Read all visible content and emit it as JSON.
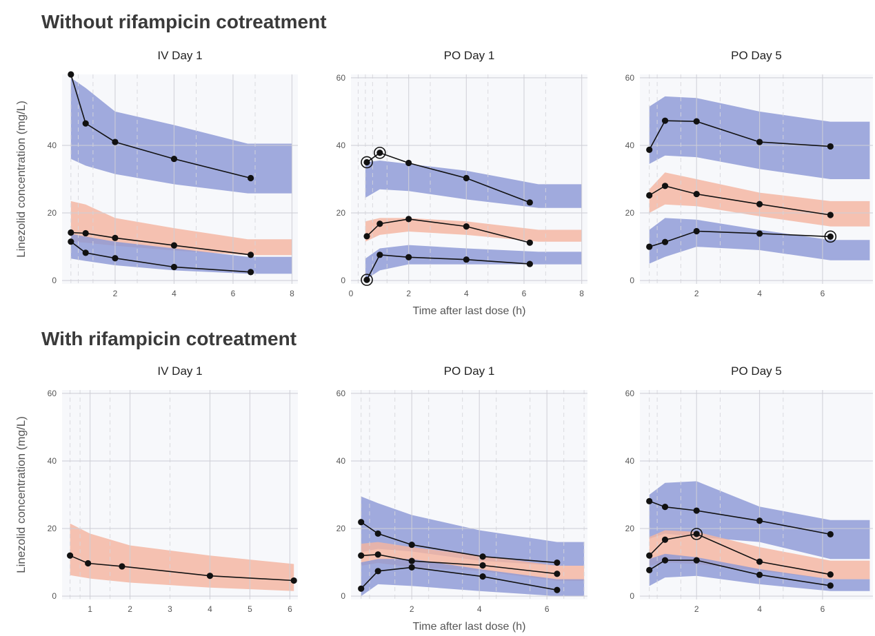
{
  "sections": [
    {
      "title": "Without rifampicin cotreatment"
    },
    {
      "title": "With rifampicin cotreatment"
    }
  ],
  "colors": {
    "blue_band": "#8c99d6",
    "orange_band": "#f4b4a0",
    "panel_bg": "#f7f8fb",
    "grid": "#cfcfd6",
    "dash": "#d6d6dc",
    "line": "#111111"
  },
  "chart_data": [
    {
      "type": "line",
      "section": "Without rifampicin cotreatment",
      "title": "IV Day 1",
      "xlabel": "",
      "ylabel": "Linezolid concentration (mg/L)",
      "xlim": [
        0.2,
        8.2
      ],
      "ylim": [
        -1,
        61
      ],
      "xticks": [
        2,
        4,
        6,
        8
      ],
      "yticks": [
        0,
        20,
        40
      ],
      "major_x": [
        2,
        4,
        6,
        8
      ],
      "dashed_x": [
        0.5,
        0.75,
        1.25,
        2.75,
        4.75,
        6.75
      ],
      "bands": [
        {
          "color": "blue",
          "x": [
            0.5,
            1,
            2,
            4,
            6.5,
            8.0
          ],
          "lo": [
            36,
            34,
            31.5,
            28.5,
            25.8,
            25.8
          ],
          "hi": [
            60,
            57,
            50,
            46,
            40.5,
            40.5
          ]
        },
        {
          "color": "orange",
          "x": [
            0.5,
            1,
            2,
            4,
            6.5,
            8.0
          ],
          "lo": [
            11.5,
            11.2,
            10.3,
            8.9,
            7.5,
            7.5
          ],
          "hi": [
            23.5,
            22.5,
            18.5,
            15.5,
            12.2,
            12.2
          ]
        },
        {
          "color": "blue",
          "x": [
            0.5,
            1,
            2,
            4,
            6.5,
            8.0
          ],
          "lo": [
            6.5,
            5.8,
            4.5,
            3.0,
            2.0,
            2.0
          ],
          "hi": [
            13.8,
            13.0,
            11.5,
            9.5,
            7.0,
            7.0
          ]
        }
      ],
      "series": [
        {
          "x": [
            0.5,
            1.0,
            2.0,
            4.0,
            6.6
          ],
          "y": [
            61,
            46.5,
            41,
            36,
            30.3
          ]
        },
        {
          "x": [
            0.5,
            1.0,
            2.0,
            4.0,
            6.6
          ],
          "y": [
            14.2,
            14,
            12.6,
            10.4,
            7.6
          ]
        },
        {
          "x": [
            0.5,
            1.0,
            2.0,
            4.0,
            6.6
          ],
          "y": [
            11.5,
            8.2,
            6.6,
            4.0,
            2.5
          ]
        }
      ]
    },
    {
      "type": "line",
      "section": "Without rifampicin cotreatment",
      "title": "PO Day 1",
      "xlabel": "Time after last dose (h)",
      "ylabel": "",
      "xlim": [
        0,
        8.2
      ],
      "ylim": [
        -1,
        61
      ],
      "xticks": [
        0,
        2,
        4,
        6,
        8
      ],
      "yticks": [
        0,
        20,
        40,
        60
      ],
      "major_x": [
        2,
        4,
        6,
        8
      ],
      "dashed_x": [
        0.25,
        0.5,
        0.75,
        1.25,
        2.75,
        4.75,
        6.75
      ],
      "bands": [
        {
          "color": "blue",
          "x": [
            0.5,
            1,
            2,
            4,
            6.5,
            8.0
          ],
          "lo": [
            24.5,
            27,
            26.5,
            24,
            21.5,
            21.5
          ],
          "hi": [
            35,
            35.5,
            34.5,
            32.5,
            28.5,
            28.5
          ]
        },
        {
          "color": "orange",
          "x": [
            0.5,
            1,
            2,
            4,
            6.5,
            8.0
          ],
          "lo": [
            11.5,
            13.5,
            14.5,
            13.5,
            11.5,
            11.5
          ],
          "hi": [
            17.5,
            18.5,
            18.5,
            17.5,
            15,
            15
          ]
        },
        {
          "color": "blue",
          "x": [
            0.5,
            1,
            2,
            4,
            6.5,
            8.0
          ],
          "lo": [
            0.2,
            3,
            4.8,
            4.8,
            4.8,
            4.8
          ],
          "hi": [
            6.5,
            9.5,
            10.5,
            9.5,
            8.5,
            8.5
          ]
        }
      ],
      "series": [
        {
          "x": [
            0.55,
            1.0,
            2.0,
            4.0,
            6.2
          ],
          "y": [
            35,
            37.8,
            34.8,
            30.3,
            23.1
          ],
          "circled": [
            0,
            1
          ]
        },
        {
          "x": [
            0.55,
            1.0,
            2.0,
            4.0,
            6.2
          ],
          "y": [
            13.1,
            16.8,
            18.2,
            16,
            11.2
          ]
        },
        {
          "x": [
            0.55,
            1.0,
            2.0,
            4.0,
            6.2
          ],
          "y": [
            0.2,
            7.6,
            6.9,
            6.2,
            4.9
          ],
          "circled": [
            0
          ]
        }
      ]
    },
    {
      "type": "line",
      "section": "Without rifampicin cotreatment",
      "title": "PO Day 5",
      "xlabel": "",
      "ylabel": "",
      "xlim": [
        0.2,
        7.6
      ],
      "ylim": [
        -1,
        61
      ],
      "xticks": [
        2,
        4,
        6
      ],
      "yticks": [
        0,
        20,
        40,
        60
      ],
      "major_x": [
        2,
        4,
        6
      ],
      "dashed_x": [
        0.5,
        0.75,
        1.5,
        2.75,
        4.75
      ],
      "bands": [
        {
          "color": "blue",
          "x": [
            0.5,
            1,
            2,
            4,
            6.25,
            7.5
          ],
          "lo": [
            34.5,
            37,
            36.5,
            33,
            30,
            30
          ],
          "hi": [
            51.5,
            54.5,
            54,
            50,
            47,
            47
          ]
        },
        {
          "color": "orange",
          "x": [
            0.5,
            1,
            2,
            4,
            6.25,
            7.5
          ],
          "lo": [
            20,
            22.5,
            22,
            19,
            16,
            16
          ],
          "hi": [
            27,
            32,
            30,
            26,
            23.5,
            23.5
          ]
        },
        {
          "color": "blue",
          "x": [
            0.5,
            1,
            2,
            4,
            6.25,
            7.5
          ],
          "lo": [
            5,
            7,
            10,
            9,
            6,
            6
          ],
          "hi": [
            15,
            18.5,
            18,
            15,
            12,
            12
          ]
        }
      ],
      "series": [
        {
          "x": [
            0.5,
            1.0,
            2.0,
            4.0,
            6.25
          ],
          "y": [
            38.7,
            47.3,
            47.1,
            41,
            39.7
          ]
        },
        {
          "x": [
            0.5,
            1.0,
            2.0,
            4.0,
            6.25
          ],
          "y": [
            25.2,
            28,
            25.6,
            22.6,
            19.4
          ]
        },
        {
          "x": [
            0.5,
            1.0,
            2.0,
            4.0,
            6.25
          ],
          "y": [
            10,
            11.4,
            14.6,
            13.9,
            13
          ],
          "circled": [
            4
          ]
        }
      ]
    },
    {
      "type": "line",
      "section": "With rifampicin cotreatment",
      "title": "IV Day 1",
      "xlabel": "",
      "ylabel": "Linezolid concentration (mg/L)",
      "xlim": [
        0.3,
        6.2
      ],
      "ylim": [
        -1,
        61
      ],
      "xticks": [
        1,
        2,
        3,
        4,
        5,
        6
      ],
      "yticks": [
        0,
        20,
        40,
        60
      ],
      "major_x": [
        1,
        2,
        4,
        5,
        6
      ],
      "dashed_x": [
        0.5,
        0.75,
        1.5,
        3
      ],
      "bands": [
        {
          "color": "orange",
          "x": [
            0.5,
            1,
            2,
            4,
            6.1
          ],
          "lo": [
            6.2,
            5.2,
            4.0,
            2.5,
            1.5
          ],
          "hi": [
            21.5,
            18.5,
            15,
            12,
            9.5
          ]
        }
      ],
      "series": [
        {
          "x": [
            0.5,
            0.95,
            1.8,
            4.0,
            6.1
          ],
          "y": [
            12,
            9.7,
            8.8,
            6,
            4.6
          ]
        }
      ]
    },
    {
      "type": "line",
      "section": "With rifampicin cotreatment",
      "title": "PO Day 1",
      "xlabel": "Time after last dose (h)",
      "ylabel": "",
      "xlim": [
        0.2,
        7.2
      ],
      "ylim": [
        -1,
        61
      ],
      "xticks": [
        2,
        4,
        6
      ],
      "yticks": [
        0,
        20,
        40,
        60
      ],
      "major_x": [
        2,
        4,
        6
      ],
      "dashed_x": [
        0.5,
        0.75,
        1.5,
        2.5,
        3.5,
        4.5,
        5.5,
        6.5,
        7.1
      ],
      "bands": [
        {
          "color": "blue",
          "x": [
            0.5,
            1,
            2,
            4,
            6.3,
            7.1
          ],
          "lo": [
            13,
            14,
            13.2,
            10.5,
            9,
            9
          ],
          "hi": [
            29.5,
            27.5,
            24,
            19.5,
            16,
            16
          ]
        },
        {
          "color": "orange",
          "x": [
            0.5,
            1,
            2,
            4,
            6.3,
            7.1
          ],
          "lo": [
            9,
            9.8,
            8.5,
            7.5,
            4.5,
            4.5
          ],
          "hi": [
            15.5,
            16,
            14.5,
            12,
            9,
            9
          ]
        },
        {
          "color": "blue",
          "x": [
            0.5,
            1,
            2,
            4,
            6.3,
            7.1
          ],
          "lo": [
            0,
            3.5,
            3,
            1.5,
            0,
            0
          ],
          "hi": [
            10,
            11,
            11,
            8,
            5,
            5
          ]
        }
      ],
      "series": [
        {
          "x": [
            0.5,
            1.0,
            2.0,
            4.1,
            6.3
          ],
          "y": [
            21.9,
            18.5,
            15.2,
            11.7,
            9.9
          ]
        },
        {
          "x": [
            0.5,
            1.0,
            2.0,
            4.1,
            6.3
          ],
          "y": [
            12,
            12.3,
            10.4,
            9.1,
            6.6
          ]
        },
        {
          "x": [
            0.5,
            1.0,
            2.0,
            4.1,
            6.3
          ],
          "y": [
            2.2,
            7.4,
            8.5,
            5.8,
            1.8
          ]
        }
      ]
    },
    {
      "type": "line",
      "section": "With rifampicin cotreatment",
      "title": "PO Day 5",
      "xlabel": "",
      "ylabel": "",
      "xlim": [
        0.2,
        7.6
      ],
      "ylim": [
        -1,
        61
      ],
      "xticks": [
        2,
        4,
        6
      ],
      "yticks": [
        0,
        20,
        40,
        60
      ],
      "major_x": [
        2,
        4,
        6
      ],
      "dashed_x": [
        0.5,
        0.75,
        1.5,
        2.75,
        4.75
      ],
      "bands": [
        {
          "color": "blue",
          "x": [
            0.5,
            1,
            2,
            4,
            6.25,
            7.5
          ],
          "lo": [
            17,
            18.5,
            17.5,
            16,
            11,
            11
          ],
          "hi": [
            30,
            33.5,
            34,
            26.5,
            22.5,
            22.5
          ]
        },
        {
          "color": "orange",
          "x": [
            0.5,
            1,
            2,
            4,
            6.25,
            7.5
          ],
          "lo": [
            9,
            10,
            9.5,
            7.5,
            5,
            5
          ],
          "hi": [
            17.5,
            19.5,
            19,
            14.5,
            10.5,
            10.5
          ]
        },
        {
          "color": "blue",
          "x": [
            0.5,
            1,
            2,
            4,
            6.25,
            7.5
          ],
          "lo": [
            3,
            5.5,
            6,
            3.5,
            1.5,
            1.5
          ],
          "hi": [
            11,
            12.5,
            11.5,
            8,
            5,
            5
          ]
        }
      ],
      "series": [
        {
          "x": [
            0.5,
            1.0,
            2.0,
            4.0,
            6.25
          ],
          "y": [
            28.1,
            26.4,
            25.3,
            22.3,
            18.3
          ]
        },
        {
          "x": [
            0.5,
            1.0,
            2.0,
            4.0,
            6.25
          ],
          "y": [
            12,
            16.7,
            18.4,
            10.2,
            6.4
          ],
          "circled": [
            2
          ]
        },
        {
          "x": [
            0.5,
            1.0,
            2.0,
            4.0,
            6.25
          ],
          "y": [
            7.7,
            10.6,
            10.6,
            6.3,
            3.1
          ]
        }
      ]
    }
  ]
}
